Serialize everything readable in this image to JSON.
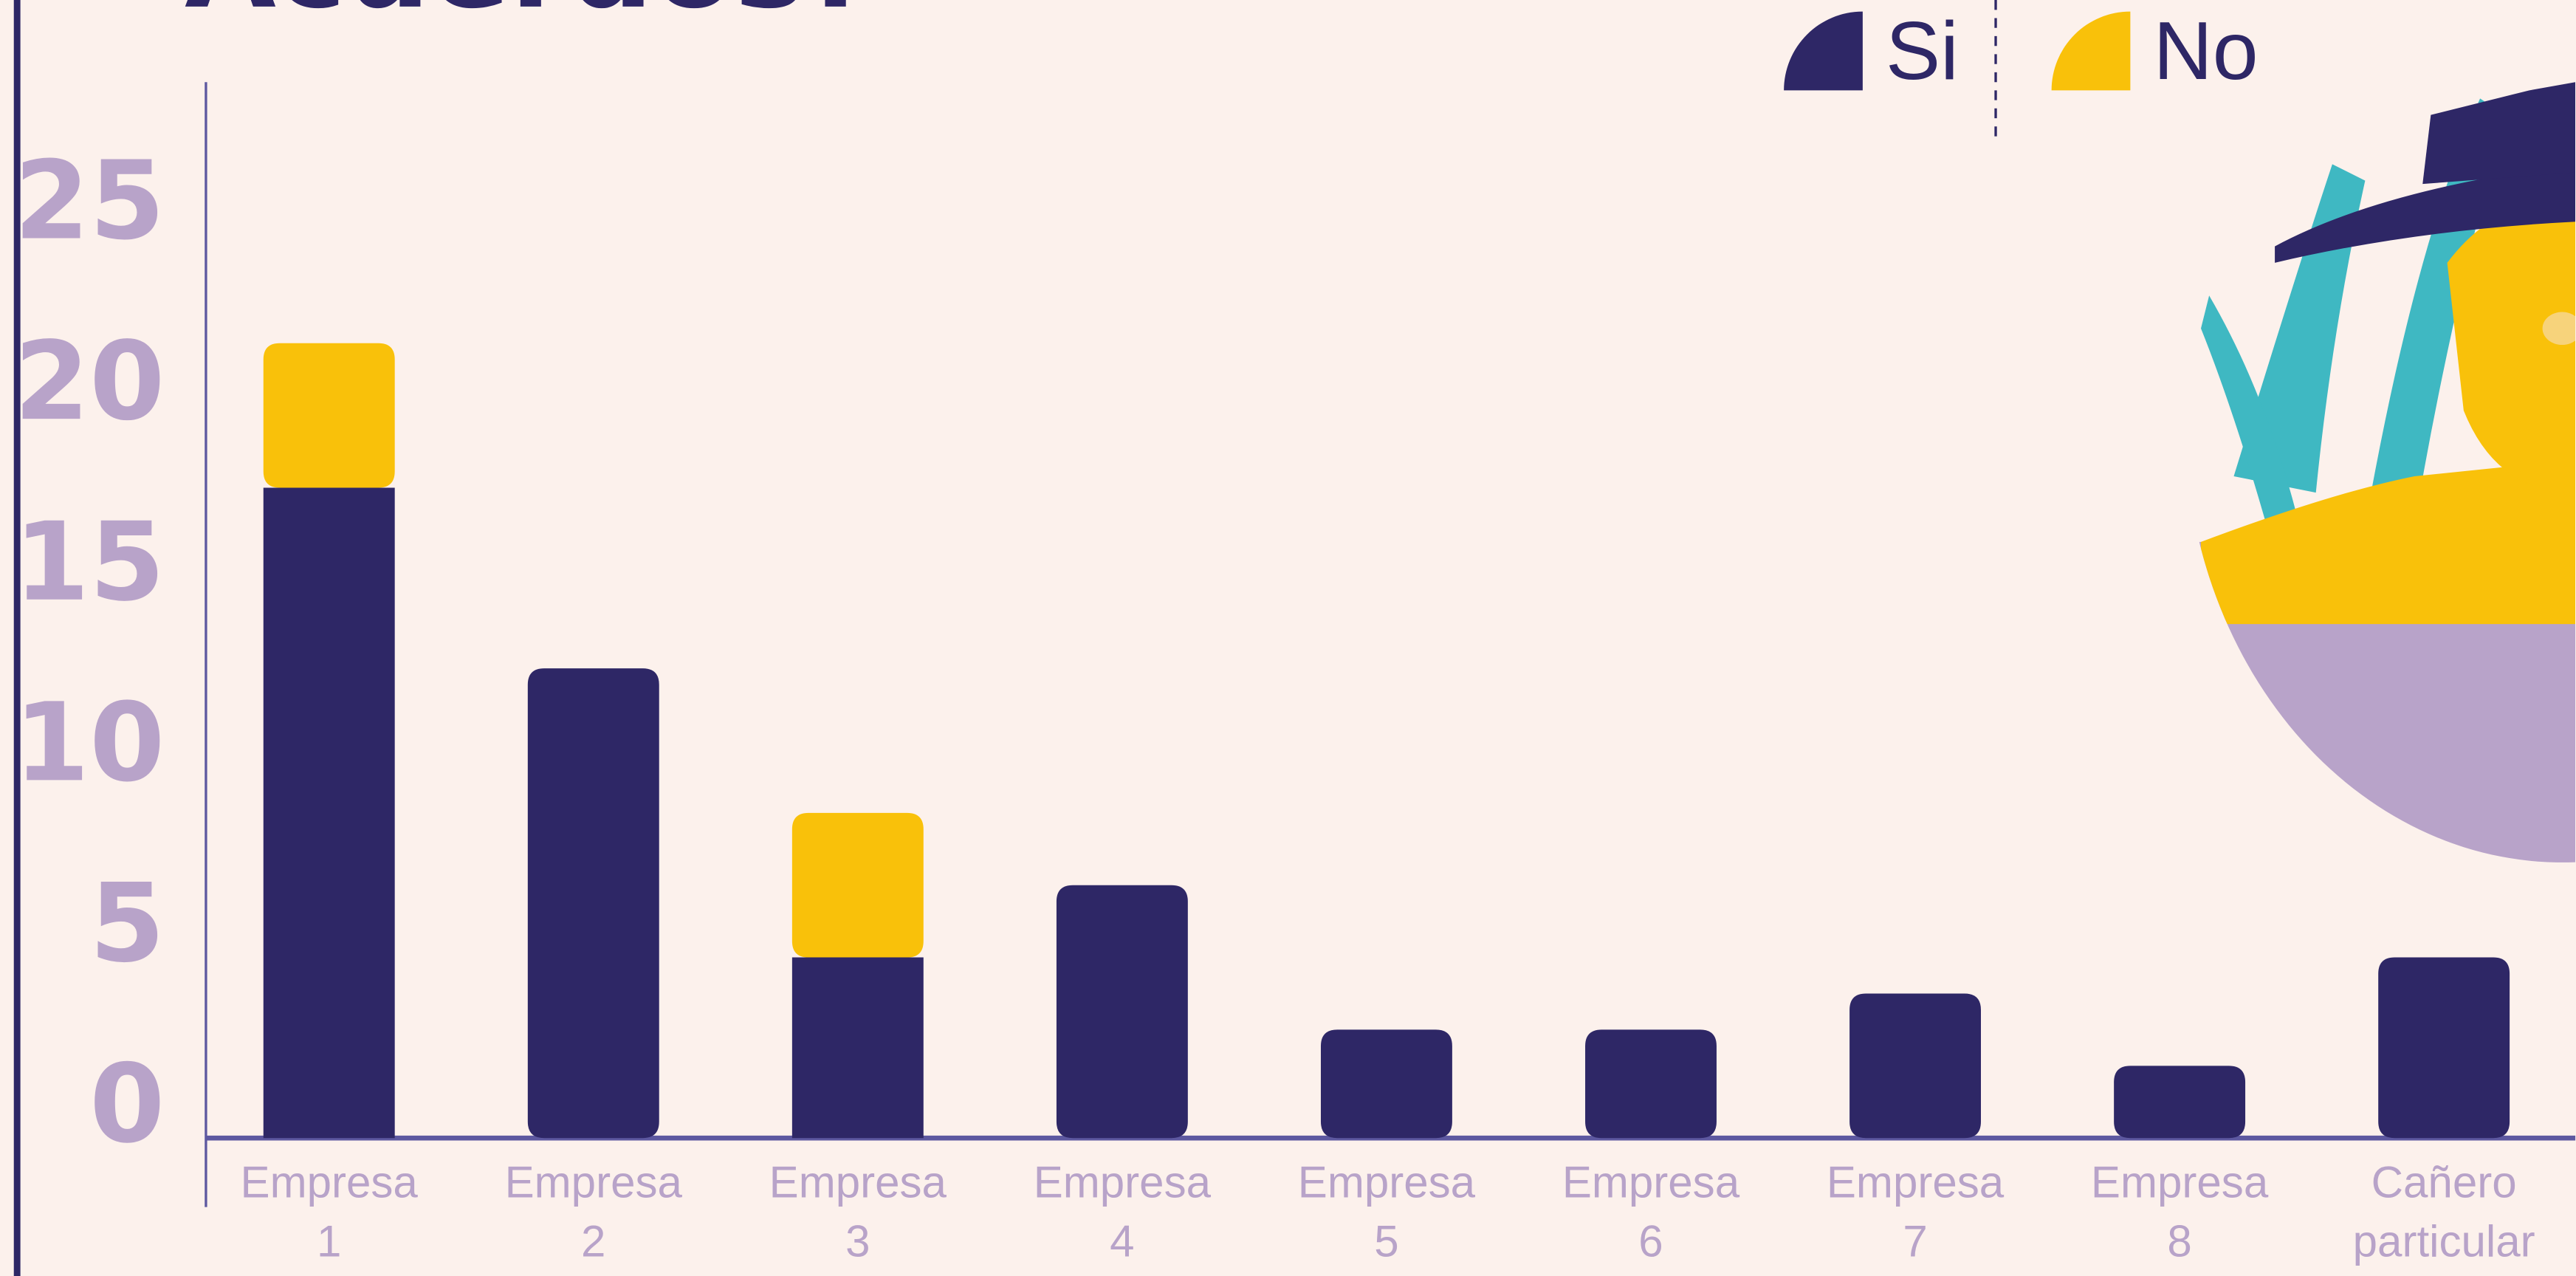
{
  "chart_data": {
    "type": "stacked-bar",
    "title": "Acuerdos?",
    "categories": [
      "Empresa 1",
      "Empresa 2",
      "Empresa 3",
      "Empresa 4",
      "Empresa 5",
      "Empresa 6",
      "Empresa 7",
      "Empresa 8",
      "Cañero particular"
    ],
    "series": [
      {
        "name": "Si",
        "color": "#2e2766",
        "values": [
          18,
          13,
          5,
          7,
          3,
          3,
          4,
          2,
          5
        ]
      },
      {
        "name": "No",
        "color": "#f9c10a",
        "values": [
          4,
          0,
          4,
          0,
          0,
          0,
          0,
          0,
          0
        ]
      }
    ],
    "ylim": [
      0,
      25
    ],
    "yticks": [
      0,
      5,
      10,
      15,
      20,
      25
    ],
    "grid": false
  }
}
